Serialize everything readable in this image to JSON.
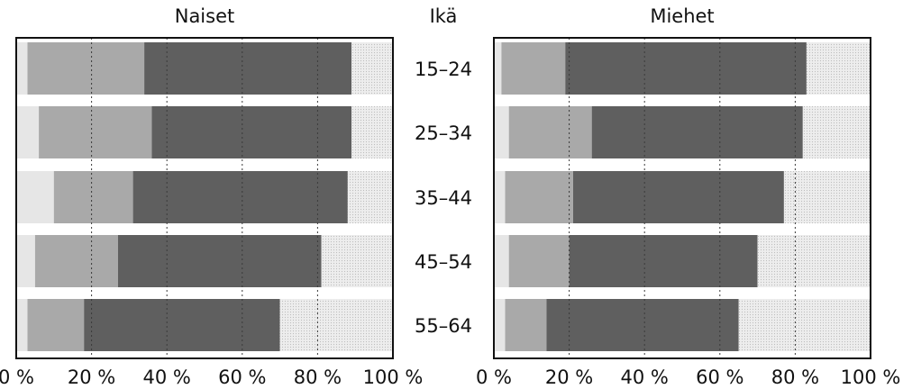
{
  "chart_data": [
    {
      "type": "bar",
      "stacked": true,
      "orientation": "horizontal",
      "title": "Naiset",
      "categories": [
        "15–24",
        "25–34",
        "35–44",
        "45–54",
        "55–64"
      ],
      "series": [
        {
          "color": "#e6e6e6",
          "values": [
            3,
            6,
            10,
            5,
            3
          ]
        },
        {
          "color": "#a9a9a9",
          "values": [
            31,
            30,
            21,
            22,
            15
          ]
        },
        {
          "color": "#5f5f5f",
          "values": [
            55,
            53,
            57,
            54,
            52
          ]
        },
        {
          "color": "#dadada",
          "values": [
            11,
            11,
            12,
            19,
            30
          ]
        }
      ],
      "xlim": [
        0,
        100
      ],
      "xticks": [
        "0 %",
        "20 %",
        "40 %",
        "60 %",
        "80 %",
        "100 %"
      ],
      "grid": true
    },
    {
      "type": "bar",
      "stacked": true,
      "orientation": "horizontal",
      "title": "Miehet",
      "categories": [
        "15–24",
        "25–34",
        "35–44",
        "45–54",
        "55–64"
      ],
      "series": [
        {
          "color": "#e6e6e6",
          "values": [
            2,
            4,
            3,
            4,
            3
          ]
        },
        {
          "color": "#a9a9a9",
          "values": [
            17,
            22,
            18,
            16,
            11
          ]
        },
        {
          "color": "#5f5f5f",
          "values": [
            64,
            56,
            56,
            50,
            51
          ]
        },
        {
          "color": "#dadada",
          "values": [
            17,
            18,
            23,
            30,
            35
          ]
        }
      ],
      "xlim": [
        0,
        100
      ],
      "xticks": [
        "0 %",
        "20 %",
        "40 %",
        "60 %",
        "80 %",
        "100 %"
      ],
      "grid": true
    }
  ],
  "center_header": "Ikä",
  "age_labels": [
    "15–24",
    "25–34",
    "35–44",
    "45–54",
    "55–64"
  ]
}
